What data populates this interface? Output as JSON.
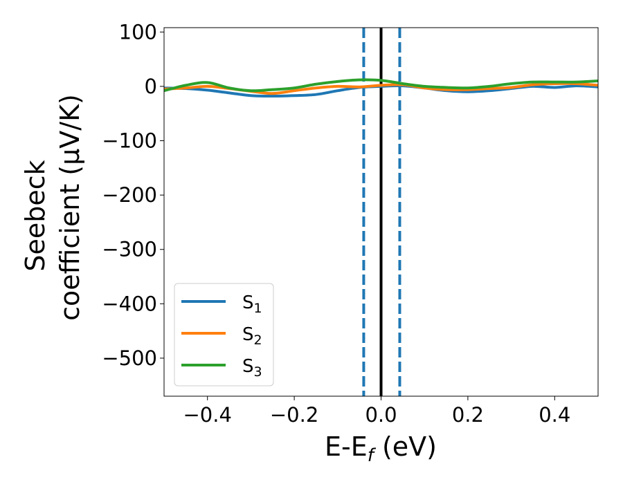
{
  "chart_data": {
    "type": "line",
    "xlabel": "E-E_f (eV)",
    "xlabel_main": "E-E",
    "xlabel_sub": "f",
    "xlabel_unit": " (eV)",
    "ylabel_line1": "Seebeck",
    "ylabel_line2": "coefficient  (μV/K)",
    "xlim": [
      -0.5,
      0.5
    ],
    "ylim": [
      -570,
      108
    ],
    "xticks": [
      -0.4,
      -0.2,
      0.0,
      0.2,
      0.4
    ],
    "xtick_labels": [
      "−0.4",
      "−0.2",
      "0.0",
      "0.2",
      "0.4"
    ],
    "yticks": [
      100,
      0,
      -100,
      -200,
      -300,
      -400,
      -500
    ],
    "ytick_labels": [
      "100",
      "0",
      "−100",
      "−200",
      "−300",
      "−400",
      "−500"
    ],
    "grid": false,
    "legend_position": "lower-left",
    "vlines": [
      {
        "x": 0.0,
        "style": "solid",
        "color": "#000000"
      },
      {
        "x": -0.04,
        "style": "dashed",
        "color": "#1f77b4"
      },
      {
        "x": 0.043,
        "style": "dashed",
        "color": "#1f77b4"
      }
    ],
    "series": [
      {
        "name": "S1",
        "label_main": "S",
        "label_sub": "1",
        "color": "#1f77b4",
        "x": [
          -0.5,
          -0.45,
          -0.4,
          -0.35,
          -0.3,
          -0.25,
          -0.2,
          -0.15,
          -0.1,
          -0.05,
          0.0,
          0.05,
          0.1,
          0.15,
          0.2,
          0.25,
          0.3,
          0.35,
          0.4,
          0.45,
          0.5
        ],
        "y": [
          -3,
          -4,
          -7,
          -12,
          -17,
          -18,
          -17,
          -15,
          -8,
          -2,
          0,
          1,
          -3,
          -8,
          -10,
          -8,
          -4,
          0,
          -2,
          1,
          -1
        ]
      },
      {
        "name": "S2",
        "label_main": "S",
        "label_sub": "2",
        "color": "#ff7f0e",
        "x": [
          -0.5,
          -0.45,
          -0.4,
          -0.35,
          -0.3,
          -0.25,
          -0.2,
          -0.15,
          -0.1,
          -0.05,
          0.0,
          0.05,
          0.1,
          0.15,
          0.2,
          0.25,
          0.3,
          0.35,
          0.4,
          0.45,
          0.5
        ],
        "y": [
          -5,
          -3,
          0,
          -4,
          -9,
          -13,
          -8,
          -3,
          0,
          -1,
          2,
          3,
          -3,
          -6,
          -6,
          -4,
          -2,
          3,
          5,
          5,
          2
        ]
      },
      {
        "name": "S3",
        "label_main": "S",
        "label_sub": "3",
        "color": "#2ca02c",
        "x": [
          -0.5,
          -0.45,
          -0.4,
          -0.35,
          -0.3,
          -0.25,
          -0.2,
          -0.15,
          -0.1,
          -0.05,
          0.0,
          0.05,
          0.1,
          0.15,
          0.2,
          0.25,
          0.3,
          0.35,
          0.4,
          0.45,
          0.5
        ],
        "y": [
          -8,
          2,
          7,
          -3,
          -8,
          -6,
          -3,
          4,
          9,
          12,
          11,
          5,
          0,
          -2,
          -3,
          0,
          5,
          8,
          8,
          8,
          10
        ]
      }
    ]
  }
}
